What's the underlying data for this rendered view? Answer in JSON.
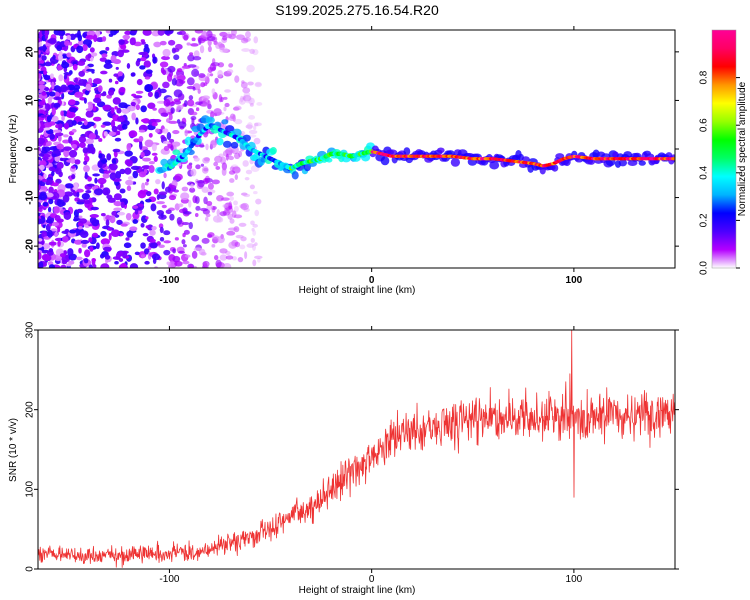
{
  "title": "S199.2025.275.16.54.R20",
  "chart_data": [
    {
      "type": "heatmap",
      "xlabel": "Height of straight line (km)",
      "ylabel": "Frequency (Hz)",
      "xlim": [
        -165,
        150
      ],
      "ylim": [
        -24.5,
        24.5
      ],
      "xticks": [
        -100,
        0,
        100
      ],
      "yticks": [
        -20,
        -10,
        0,
        10,
        20
      ],
      "ridge": {
        "x": [
          -100,
          -92,
          -85,
          -80,
          -75,
          -70,
          -65,
          -60,
          -55,
          -50,
          -45,
          -40,
          -35,
          -30,
          -25,
          -20,
          -15,
          -10,
          -5,
          0,
          5,
          10,
          20,
          30,
          40,
          50,
          60,
          70,
          80,
          85,
          90,
          95,
          100,
          110,
          120,
          130,
          140,
          150
        ],
        "frequency": [
          -4,
          -1,
          3,
          5,
          4,
          3,
          2,
          0,
          -1,
          -2,
          -3,
          -4,
          -3,
          -2.5,
          -2,
          -1,
          -1,
          -1.5,
          -1,
          -0.5,
          -1,
          -1.5,
          -1.5,
          -1.5,
          -1.5,
          -2,
          -2,
          -2.5,
          -3,
          -3.5,
          -3,
          -2,
          -1.5,
          -2,
          -2,
          -2,
          -2,
          -2
        ]
      }
    },
    {
      "type": "colorbar",
      "label": "Normalized spectral amplitude",
      "range": [
        0,
        1
      ],
      "ticks": [
        "0.0",
        "0.2",
        "0.4",
        "0.6",
        "0.8"
      ],
      "colors": [
        "#ffffff",
        "#b400ff",
        "#4b00ff",
        "#0000ff",
        "#00b4ff",
        "#00ffff",
        "#00ff64",
        "#00ff00",
        "#96ff00",
        "#ffff00",
        "#ff9600",
        "#ff0000",
        "#ff0064",
        "#ff0096"
      ]
    },
    {
      "type": "line",
      "xlabel": "Height of straight line (km)",
      "ylabel": "SNR (10 * v/v)",
      "xlim": [
        -165,
        150
      ],
      "ylim": [
        0,
        300
      ],
      "xticks": [
        -100,
        0,
        100
      ],
      "yticks": [
        0,
        100,
        200,
        300
      ],
      "color": "#ee3333",
      "trend": {
        "x": [
          -165,
          -120,
          -100,
          -80,
          -60,
          -40,
          -30,
          -20,
          -10,
          0,
          10,
          20,
          30,
          40,
          50,
          60,
          80,
          100,
          120,
          150
        ],
        "y": [
          18,
          18,
          20,
          25,
          40,
          65,
          80,
          100,
          120,
          140,
          160,
          175,
          180,
          185,
          188,
          190,
          192,
          190,
          190,
          192
        ]
      },
      "noise_amplitude": 12,
      "spikes": [
        {
          "x": 98,
          "y": 245
        },
        {
          "x": 99,
          "y": 300
        },
        {
          "x": 100,
          "y": 90
        },
        {
          "x": 96,
          "y": 235
        }
      ]
    }
  ]
}
